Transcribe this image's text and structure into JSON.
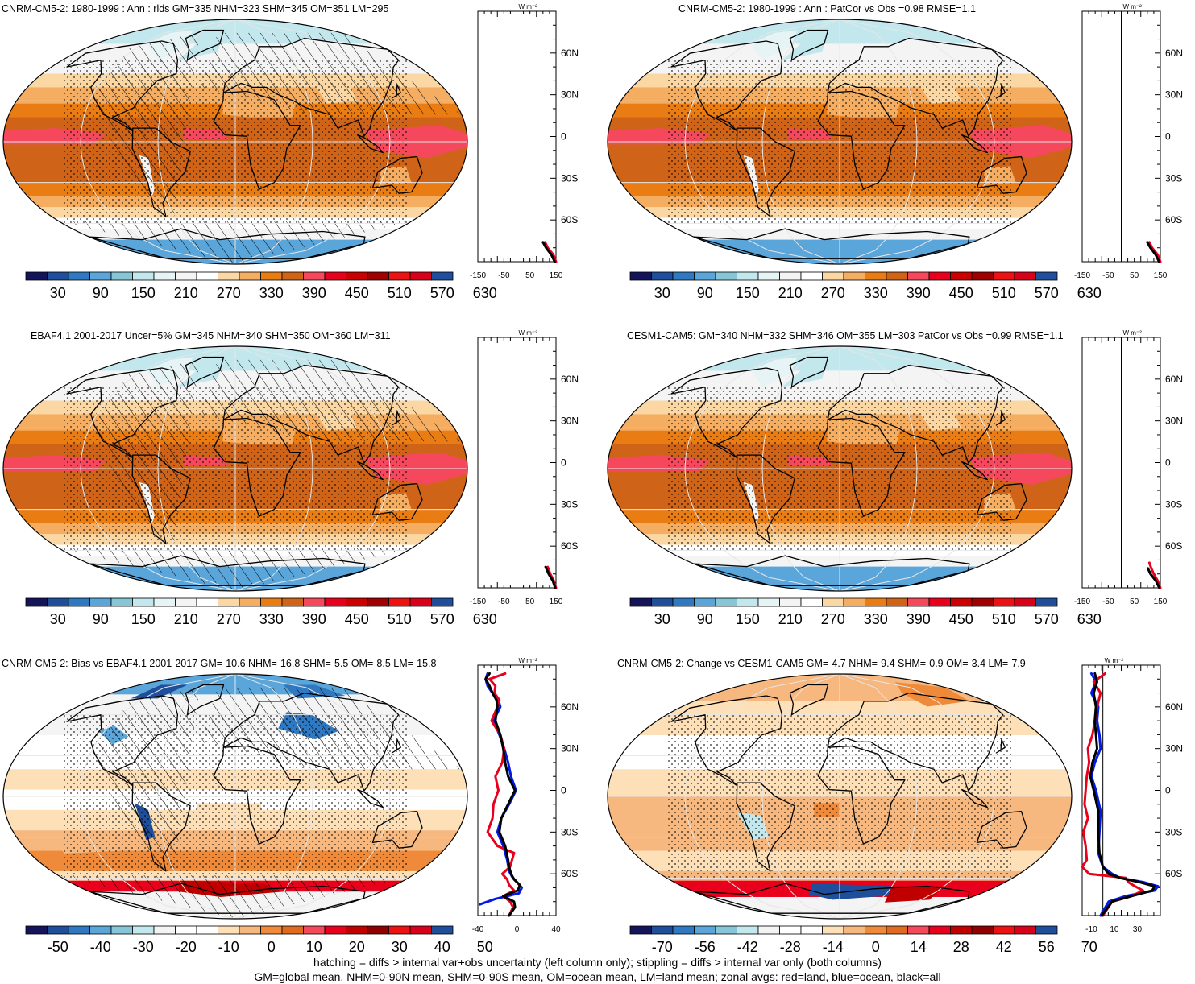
{
  "footer": {
    "line1": "hatching = diffs > internal var+obs uncertainty (left column only); stippling = diffs > internal var only (both columns)",
    "line2": "GM=global mean, NHM=0-90N mean, SHM=0-90S mean, OM=ocean mean, LM=land mean; zonal avgs: red=land, blue=ocean, black=all"
  },
  "units_label": "W m⁻²",
  "colors": {
    "land": "#e8001c",
    "ocean": "#0018e8",
    "all": "#000000"
  },
  "absolute_palette": [
    "#14145a",
    "#1f4e9a",
    "#2f78c2",
    "#5aa6da",
    "#86c6d6",
    "#c2e8ee",
    "#e6f4f6",
    "#f4f4f4",
    "#ffffff",
    "#fbd7a3",
    "#f5ad62",
    "#ea7c14",
    "#cf6418",
    "#f5485c",
    "#e8001c",
    "#cc0000",
    "#a00000",
    "#ee1111",
    "#d9001a",
    "#1f4e9a"
  ],
  "diff_palette": [
    "#14145a",
    "#1f4e9a",
    "#2f78c2",
    "#5aa6da",
    "#86c6d6",
    "#c2e8ee",
    "#f4f4f4",
    "#ffffff",
    "#ffffff",
    "#fde0b8",
    "#f7b880",
    "#ee8a3a",
    "#e06a20",
    "#f5485c",
    "#e8001c",
    "#c00000",
    "#900000",
    "#ee1111",
    "#d9001a",
    "#1f4e9a"
  ],
  "chart_data": [
    {
      "id": "p1",
      "type": "heatmap",
      "title": "CNRM-CM5-2: 1980-1999 : Ann : rlds GM=335 NHM=323 SHM=345 OM=351 LM=295",
      "colorbar": {
        "ticks": [
          "30",
          "90",
          "150",
          "210",
          "270",
          "330",
          "390",
          "450",
          "510",
          "570",
          "630"
        ]
      },
      "zonal": {
        "xlim": [
          -150,
          150
        ],
        "xticks": [
          "-150",
          "-50",
          "50",
          "150"
        ],
        "lat_ticks": [
          "60N",
          "30N",
          "0",
          "30S",
          "60S"
        ],
        "units": "W m⁻²",
        "series": [
          {
            "name": "land",
            "lat": [
              -90,
              -85,
              -80,
              -76
            ],
            "values": [
              150,
              140,
              118,
              108
            ]
          },
          {
            "name": "all",
            "lat": [
              -90,
              -85,
              -80,
              -76
            ],
            "values": [
              145,
              132,
              112,
              100
            ]
          }
        ]
      }
    },
    {
      "id": "p2",
      "type": "heatmap",
      "title": "CNRM-CM5-2: 1980-1999 : Ann : PatCor vs Obs =0.98 RMSE=1.1",
      "colorbar": {
        "ticks": [
          "30",
          "90",
          "150",
          "210",
          "270",
          "330",
          "390",
          "450",
          "510",
          "570",
          "630"
        ]
      },
      "zonal": {
        "xlim": [
          -150,
          150
        ],
        "xticks": [
          "-150",
          "-50",
          "50",
          "150"
        ],
        "lat_ticks": [
          "60N",
          "30N",
          "0",
          "30S",
          "60S"
        ],
        "units": "W m⁻²",
        "series": [
          {
            "name": "land",
            "lat": [
              -90,
              -85,
              -80,
              -76
            ],
            "values": [
              150,
              140,
              118,
              108
            ]
          },
          {
            "name": "all",
            "lat": [
              -90,
              -85,
              -80,
              -76
            ],
            "values": [
              145,
              132,
              112,
              100
            ]
          }
        ]
      }
    },
    {
      "id": "p3",
      "type": "heatmap",
      "title": "EBAF4.1 2001-2017 Uncer=5% GM=345 NHM=340 SHM=350 OM=360 LM=311",
      "colorbar": {
        "ticks": [
          "30",
          "90",
          "150",
          "210",
          "270",
          "330",
          "390",
          "450",
          "510",
          "570",
          "630"
        ]
      },
      "zonal": {
        "xlim": [
          -150,
          150
        ],
        "xticks": [
          "-150",
          "-50",
          "50",
          "150"
        ],
        "lat_ticks": [
          "60N",
          "30N",
          "0",
          "30S",
          "60S"
        ],
        "units": "W m⁻²",
        "series": [
          {
            "name": "land",
            "lat": [
              -90,
              -85,
              -80,
              -75
            ],
            "values": [
              150,
              142,
              128,
              118
            ]
          },
          {
            "name": "all",
            "lat": [
              -90,
              -85,
              -80,
              -75
            ],
            "values": [
              147,
              138,
              122,
              110
            ]
          }
        ]
      }
    },
    {
      "id": "p4",
      "type": "heatmap",
      "title": "CESM1-CAM5: GM=340 NHM=332 SHM=346 OM=355 LM=303 PatCor vs Obs =0.99 RMSE=1.1",
      "colorbar": {
        "ticks": [
          "30",
          "90",
          "150",
          "210",
          "270",
          "330",
          "390",
          "450",
          "510",
          "570",
          "630"
        ]
      },
      "zonal": {
        "xlim": [
          -150,
          150
        ],
        "xticks": [
          "-150",
          "-50",
          "50",
          "150"
        ],
        "lat_ticks": [
          "60N",
          "30N",
          "0",
          "30S",
          "60S"
        ],
        "units": "W m⁻²",
        "series": [
          {
            "name": "land",
            "lat": [
              -90,
              -85,
              -80,
              -76,
              -72
            ],
            "values": [
              150,
              140,
              125,
              115,
              108
            ]
          },
          {
            "name": "all",
            "lat": [
              -90,
              -85,
              -80,
              -76
            ],
            "values": [
              146,
              133,
              112,
              102
            ]
          }
        ]
      }
    },
    {
      "id": "p5",
      "type": "heatmap",
      "title": "CNRM-CM5-2: Bias vs EBAF4.1 2001-2017 GM=-10.6 NHM=-16.8 SHM=-5.5 OM=-8.5 LM=-15.8",
      "colorbar": {
        "ticks": [
          "-50",
          "-40",
          "-30",
          "-20",
          "-10",
          "0",
          "10",
          "20",
          "30",
          "40",
          "50"
        ]
      },
      "zonal": {
        "xlim": [
          -40,
          40
        ],
        "xticks": [
          "-40",
          "0",
          "40"
        ],
        "lat_ticks": [
          "60N",
          "30N",
          "0",
          "30S",
          "60S"
        ],
        "units": "W m⁻²",
        "series": [
          {
            "name": "ocean",
            "lat": [
              -82,
              -78,
              -74,
              -70,
              -66,
              -62,
              -58,
              -50,
              -40,
              -30,
              -20,
              -10,
              0,
              10,
              20,
              30,
              40,
              50,
              60,
              65,
              70,
              75,
              80,
              84
            ],
            "values": [
              -38,
              -22,
              2,
              5,
              0,
              -5,
              -8,
              -10,
              -14,
              -20,
              -16,
              -8,
              -1,
              -6,
              -9,
              -13,
              -18,
              -24,
              -17,
              -19,
              -25,
              -30,
              -32,
              -30
            ]
          },
          {
            "name": "land",
            "lat": [
              -90,
              -84,
              -80,
              -76,
              -72,
              -68,
              -64,
              -60,
              -55,
              -45,
              -40,
              -30,
              -20,
              -10,
              0,
              10,
              20,
              30,
              40,
              50,
              60,
              65,
              70,
              75,
              80,
              84
            ],
            "values": [
              -8,
              -4,
              -7,
              -14,
              -3,
              -8,
              -10,
              -15,
              -7,
              -3,
              -20,
              -30,
              -25,
              -24,
              -19,
              -22,
              -15,
              -13,
              -17,
              -26,
              -20,
              -18,
              -23,
              -22,
              -28,
              -12
            ]
          },
          {
            "name": "all",
            "lat": [
              -90,
              -84,
              -80,
              -76,
              -72,
              -68,
              -64,
              -60,
              -55,
              -50,
              -40,
              -30,
              -20,
              -10,
              0,
              10,
              20,
              30,
              40,
              50,
              60,
              65,
              70,
              75,
              80,
              84
            ],
            "values": [
              -8,
              -2,
              -3,
              -14,
              1,
              3,
              -3,
              -6,
              -8,
              -9,
              -12,
              -18,
              -16,
              -9,
              -2,
              -9,
              -12,
              -14,
              -17,
              -22,
              -20,
              -21,
              -25,
              -28,
              -32,
              -28
            ]
          }
        ]
      }
    },
    {
      "id": "p6",
      "type": "heatmap",
      "title": "CNRM-CM5-2: Change vs CESM1-CAM5 GM=-4.7 NHM=-9.4 SHM=-0.9 OM=-3.4 LM=-7.9",
      "colorbar": {
        "ticks": [
          "-70",
          "-56",
          "-42",
          "-28",
          "-14",
          "0",
          "14",
          "28",
          "42",
          "56",
          "70"
        ]
      },
      "zonal": {
        "xlim": [
          -18,
          50
        ],
        "xticks": [
          "-10",
          "10",
          "30"
        ],
        "lat_ticks": [
          "60N",
          "30N",
          "0",
          "30S",
          "60S"
        ],
        "units": "W m⁻²",
        "series": [
          {
            "name": "ocean",
            "lat": [
              -90,
              -80,
              -76,
              -72,
              -69,
              -66,
              -63,
              -60,
              -55,
              -45,
              -30,
              -15,
              0,
              10,
              20,
              30,
              40,
              50,
              60,
              70,
              78,
              84
            ],
            "values": [
              -2,
              5,
              20,
              45,
              48,
              35,
              15,
              8,
              0,
              -4,
              -3,
              -2,
              -6,
              -10,
              -7,
              -2,
              -3,
              -5,
              -4,
              -10,
              -6,
              -10
            ]
          },
          {
            "name": "land",
            "lat": [
              -90,
              -80,
              -76,
              -72,
              -69,
              -66,
              -63,
              -60,
              -55,
              -50,
              -40,
              -30,
              -20,
              -10,
              0,
              10,
              20,
              30,
              40,
              50,
              60,
              70,
              78,
              84
            ],
            "values": [
              0,
              8,
              25,
              35,
              28,
              22,
              20,
              -12,
              -18,
              -14,
              -15,
              -17,
              -13,
              -16,
              -15,
              -14,
              -12,
              -13,
              -9,
              -7,
              -5,
              -2,
              -8,
              2
            ]
          },
          {
            "name": "all",
            "lat": [
              -90,
              -80,
              -76,
              -72,
              -69,
              -66,
              -63,
              -60,
              -55,
              -45,
              -30,
              -15,
              0,
              10,
              20,
              30,
              40,
              50,
              60,
              70,
              78,
              84
            ],
            "values": [
              -1,
              8,
              25,
              43,
              45,
              32,
              15,
              5,
              0,
              -3,
              -4,
              -4,
              -8,
              -11,
              -9,
              -5,
              -6,
              -7,
              -6,
              -8,
              -5,
              -7
            ]
          }
        ]
      }
    }
  ]
}
